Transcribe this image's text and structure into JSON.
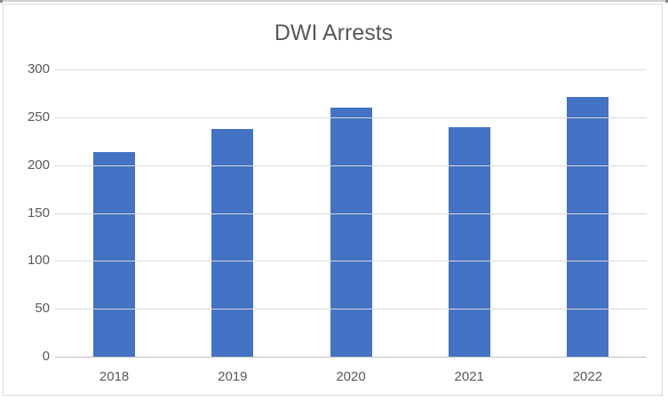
{
  "chart_data": {
    "type": "bar",
    "title": "DWI Arrests",
    "categories": [
      "2018",
      "2019",
      "2020",
      "2021",
      "2022"
    ],
    "values": [
      214,
      238,
      260,
      240,
      271
    ],
    "xlabel": "",
    "ylabel": "",
    "ylim": [
      0,
      300
    ],
    "yticks": [
      0,
      50,
      100,
      150,
      200,
      250,
      300
    ],
    "ytick_labels": [
      "0",
      "50",
      "100",
      "150",
      "200",
      "250",
      "300"
    ],
    "grid": true,
    "legend_position": "none",
    "colors": {
      "bar_fill": "#4472c4",
      "gridline": "#d9d9d9",
      "axis_line": "#bfbfbf",
      "text": "#595959",
      "chart_border": "#d9d9d9",
      "background": "#ffffff"
    }
  }
}
